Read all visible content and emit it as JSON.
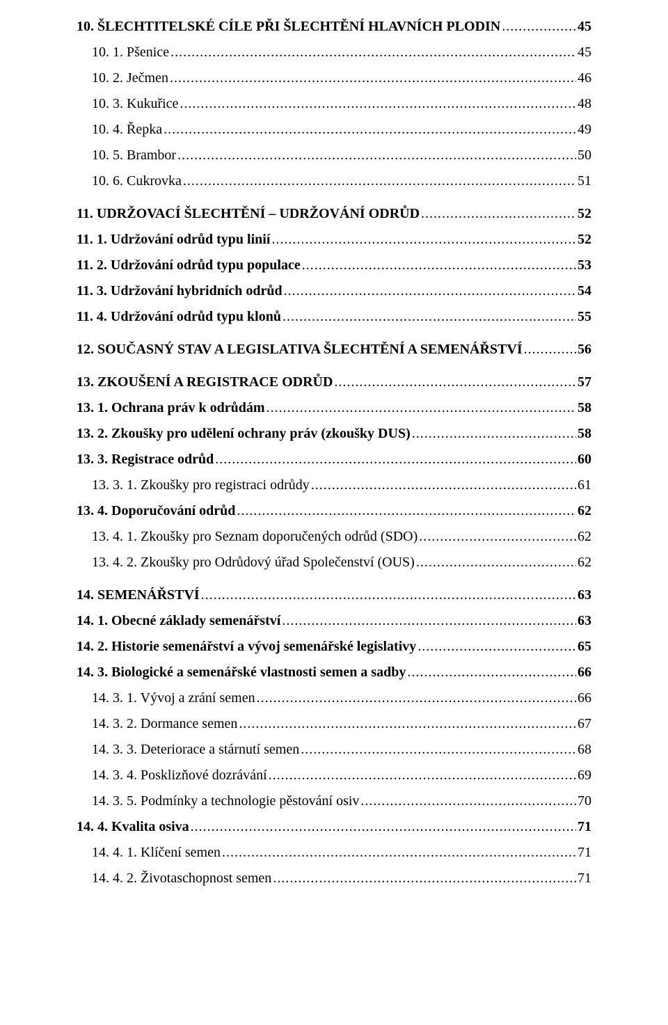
{
  "toc": [
    {
      "level": 0,
      "label": "10. ŠLECHTITELSKÉ CÍLE PŘI ŠLECHTĚNÍ HLAVNÍCH PLODIN",
      "page": "45",
      "gap": false
    },
    {
      "level": 2,
      "label": "10. 1. Pšenice",
      "page": "45",
      "gap": false
    },
    {
      "level": 2,
      "label": "10. 2. Ječmen",
      "page": "46",
      "gap": false
    },
    {
      "level": 2,
      "label": "10. 3. Kukuřice",
      "page": "48",
      "gap": false
    },
    {
      "level": 2,
      "label": "10. 4. Řepka",
      "page": "49",
      "gap": false
    },
    {
      "level": 2,
      "label": "10. 5. Brambor",
      "page": "50",
      "gap": false
    },
    {
      "level": 2,
      "label": "10. 6. Cukrovka",
      "page": "51",
      "gap": false
    },
    {
      "level": 0,
      "label": "11. UDRŽOVACÍ ŠLECHTĚNÍ – UDRŽOVÁNÍ ODRŮD",
      "page": "52",
      "gap": true
    },
    {
      "level": 1,
      "label": "11. 1. Udržování odrůd typu linií",
      "page": "52",
      "gap": false
    },
    {
      "level": 1,
      "label": "11. 2. Udržování odrůd typu populace",
      "page": "53",
      "gap": false
    },
    {
      "level": 1,
      "label": "11. 3. Udržování hybridních odrůd",
      "page": "54",
      "gap": false
    },
    {
      "level": 1,
      "label": "11. 4. Udržování odrůd typu klonů",
      "page": "55",
      "gap": false
    },
    {
      "level": 0,
      "label": "12. SOUČASNÝ STAV A LEGISLATIVA ŠLECHTĚNÍ A SEMENÁŘSTVÍ",
      "page": "56",
      "gap": true
    },
    {
      "level": 0,
      "label": "13. ZKOUŠENÍ A REGISTRACE ODRŮD",
      "page": "57",
      "gap": true
    },
    {
      "level": 1,
      "label": "13. 1. Ochrana práv k odrůdám",
      "page": "58",
      "gap": false
    },
    {
      "level": 1,
      "label": "13. 2. Zkoušky pro udělení ochrany práv (zkoušky DUS)",
      "page": "58",
      "gap": false
    },
    {
      "level": 1,
      "label": "13. 3. Registrace odrůd",
      "page": "60",
      "gap": false
    },
    {
      "level": 2,
      "label": "13. 3. 1. Zkoušky pro registraci odrůdy",
      "page": "61",
      "gap": false
    },
    {
      "level": 1,
      "label": "13. 4. Doporučování odrůd",
      "page": "62",
      "gap": false
    },
    {
      "level": 2,
      "label": "13. 4. 1. Zkoušky pro Seznam doporučených odrůd (SDO)",
      "page": "62",
      "gap": false
    },
    {
      "level": 2,
      "label": "13. 4. 2. Zkoušky pro Odrůdový úřad Společenství (OUS)",
      "page": "62",
      "gap": false
    },
    {
      "level": 0,
      "label": "14. SEMENÁŘSTVÍ",
      "page": "63",
      "gap": true
    },
    {
      "level": 1,
      "label": "14. 1. Obecné základy semenářství",
      "page": "63",
      "gap": false
    },
    {
      "level": 1,
      "label": "14. 2. Historie semenářství a vývoj semenářské legislativy",
      "page": "65",
      "gap": false
    },
    {
      "level": 1,
      "label": "14. 3. Biologické a semenářské vlastnosti semen a sadby",
      "page": "66",
      "gap": false
    },
    {
      "level": 2,
      "label": "14. 3. 1. Vývoj a zrání semen",
      "page": "66",
      "gap": false
    },
    {
      "level": 2,
      "label": "14. 3. 2. Dormance semen",
      "page": "67",
      "gap": false
    },
    {
      "level": 2,
      "label": "14. 3. 3. Deteriorace a stárnutí semen",
      "page": "68",
      "gap": false
    },
    {
      "level": 2,
      "label": "14. 3. 4. Posklizňové dozrávání",
      "page": "69",
      "gap": false
    },
    {
      "level": 2,
      "label": "14. 3. 5. Podmínky a technologie pěstování osiv",
      "page": "70",
      "gap": false
    },
    {
      "level": 1,
      "label": "14. 4. Kvalita osiva",
      "page": "71",
      "gap": false
    },
    {
      "level": 2,
      "label": "14. 4. 1. Klíčení semen",
      "page": "71",
      "gap": false
    },
    {
      "level": 2,
      "label": "14. 4. 2. Životaschopnost semen",
      "page": "71",
      "gap": false
    }
  ]
}
